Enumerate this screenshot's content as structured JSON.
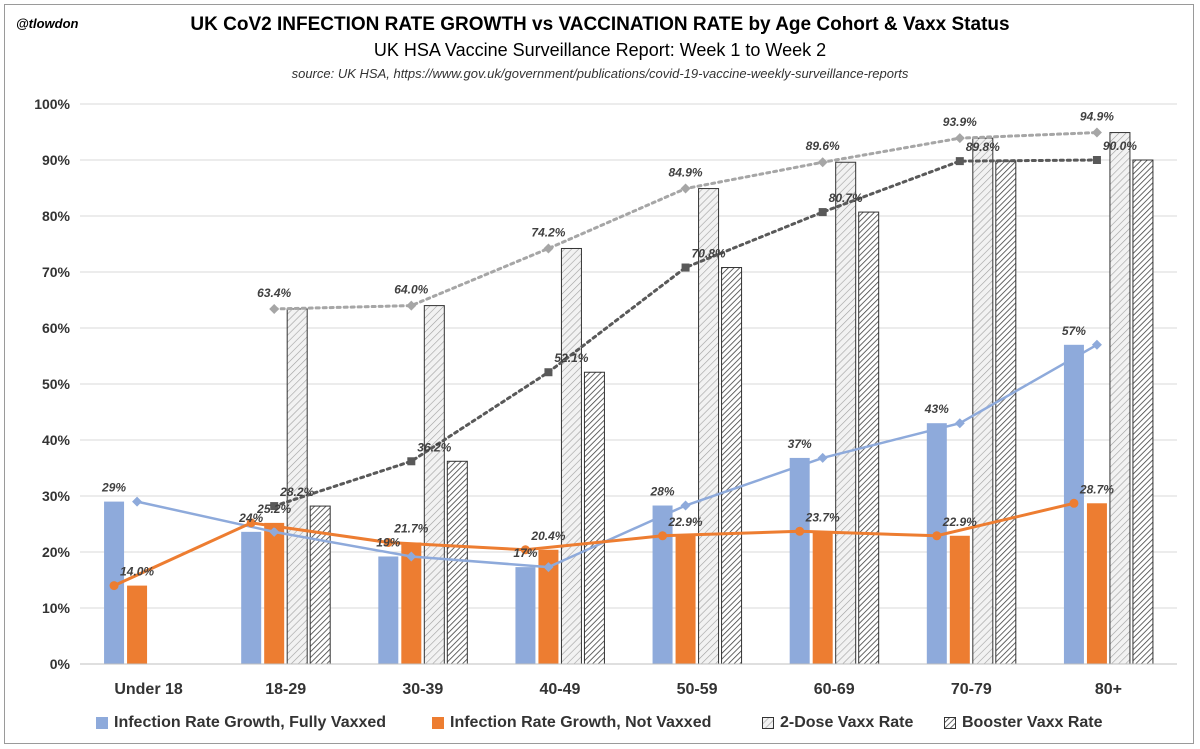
{
  "handle": "@tlowdon",
  "title": "UK CoV2 INFECTION RATE GROWTH vs VACCINATION RATE by Age Cohort & Vaxx Status",
  "subtitle": "UK HSA Vaccine Surveillance Report: Week 1  to Week 2",
  "source": "source:  UK HSA, https://www.gov.uk/government/publications/covid-19-vaccine-weekly-surveillance-reports",
  "colors": {
    "fully_vaxxed": "#8eaadb",
    "not_vaxxed": "#ed7d31",
    "two_dose_line": "#a6a6a6",
    "booster_line": "#595959"
  },
  "chart_data": {
    "type": "bar",
    "categories": [
      "Under 18",
      "18-29",
      "30-39",
      "40-49",
      "50-59",
      "60-69",
      "70-79",
      "80+"
    ],
    "ylim": [
      0,
      100
    ],
    "yticks": [
      "0%",
      "10%",
      "20%",
      "30%",
      "40%",
      "50%",
      "60%",
      "70%",
      "80%",
      "90%",
      "100%"
    ],
    "series": [
      {
        "name": "Infection Rate Growth, Fully Vaxxed",
        "values": [
          29,
          23.6,
          19.2,
          17.3,
          28.3,
          36.8,
          43,
          57
        ],
        "labels": [
          "29%",
          "24%",
          "19%",
          "17%",
          "28%",
          "37%",
          "43%",
          "57%"
        ]
      },
      {
        "name": "Infection Rate Growth, Not Vaxxed",
        "values": [
          14.0,
          25.2,
          21.7,
          20.4,
          22.9,
          23.7,
          22.9,
          28.7
        ],
        "labels": [
          "14.0%",
          "25.2%",
          "21.7%",
          "20.4%",
          "22.9%",
          "23.7%",
          "22.9%",
          "28.7%"
        ]
      },
      {
        "name": "2-Dose Vaxx Rate",
        "values": [
          null,
          63.4,
          64.0,
          74.2,
          84.9,
          89.6,
          93.9,
          94.9
        ],
        "labels": [
          "",
          "63.4%",
          "64.0%",
          "74.2%",
          "84.9%",
          "89.6%",
          "93.9%",
          "94.9%"
        ]
      },
      {
        "name": "Booster Vaxx Rate",
        "values": [
          null,
          28.2,
          36.2,
          52.1,
          70.8,
          80.7,
          89.8,
          90.0
        ],
        "labels": [
          "",
          "28.2%",
          "36.2%",
          "52.1%",
          "70.8%",
          "80.7%",
          "89.8%",
          "90.0%"
        ]
      }
    ],
    "grid": true,
    "legend": "bottom"
  }
}
